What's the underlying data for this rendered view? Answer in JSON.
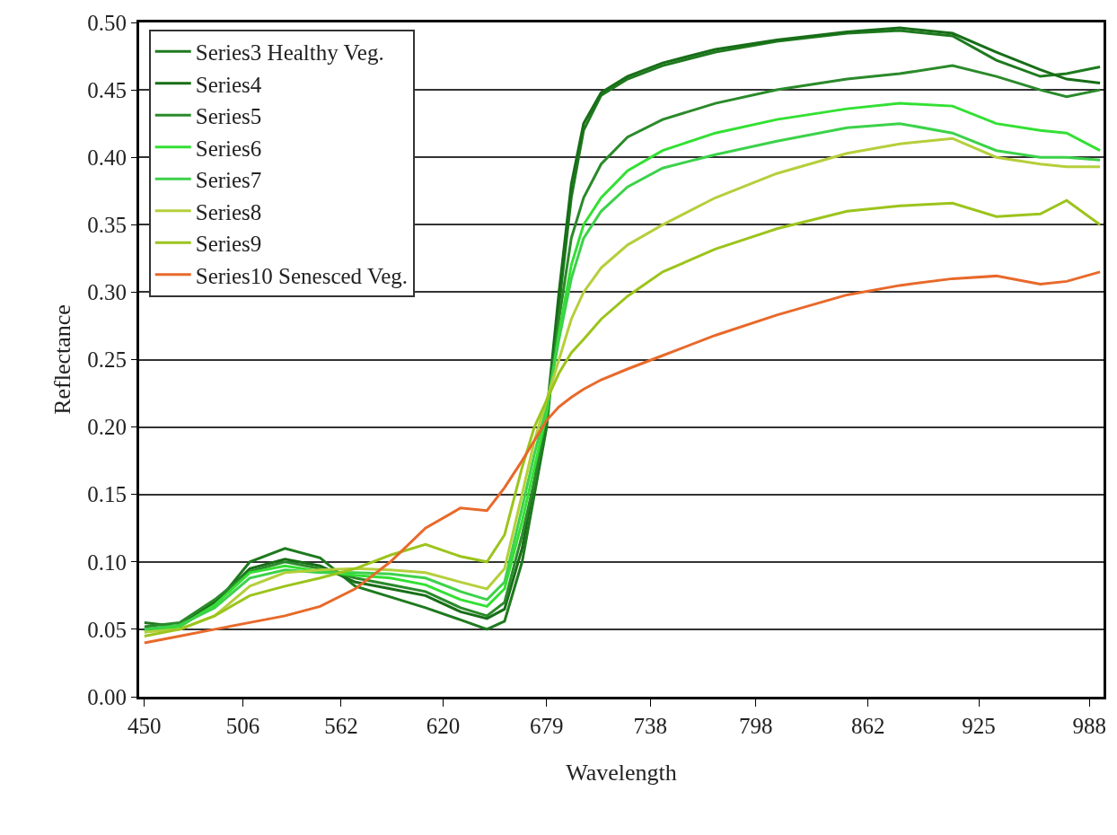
{
  "chart_data": {
    "type": "line",
    "xlabel": "Wavelength",
    "ylabel": "Reflectance",
    "x": [
      450,
      470,
      490,
      510,
      530,
      550,
      570,
      590,
      610,
      630,
      645,
      655,
      665,
      672,
      679,
      686,
      693,
      700,
      710,
      725,
      745,
      775,
      810,
      850,
      880,
      910,
      935,
      960,
      975,
      994
    ],
    "xlim": [
      447,
      996
    ],
    "xticks": [
      450,
      506,
      562,
      620,
      679,
      738,
      798,
      862,
      925,
      988
    ],
    "ylim": [
      0,
      0.5
    ],
    "yticks": [
      {
        "value": 0,
        "label": "0.00"
      },
      {
        "value": 0.05,
        "label": "0.05"
      },
      {
        "value": 0.1,
        "label": "0.10"
      },
      {
        "value": 0.15,
        "label": "0.15"
      },
      {
        "value": 0.2,
        "label": "0.20"
      },
      {
        "value": 0.25,
        "label": "0.25"
      },
      {
        "value": 0.3,
        "label": "0.30"
      },
      {
        "value": 0.35,
        "label": "0.35"
      },
      {
        "value": 0.4,
        "label": "0.40"
      },
      {
        "value": 0.45,
        "label": "0.45"
      },
      {
        "value": 0.5,
        "label": "0.50"
      }
    ],
    "grid": "y",
    "legend": "top left",
    "marker": "none",
    "line_style": "solid",
    "series": [
      {
        "name": "Series3 Healthy Veg.",
        "color": "#1e7a1e",
        "values": [
          0.055,
          0.052,
          0.068,
          0.1,
          0.11,
          0.103,
          0.082,
          0.074,
          0.066,
          0.057,
          0.05,
          0.056,
          0.1,
          0.15,
          0.2,
          0.29,
          0.37,
          0.42,
          0.446,
          0.458,
          0.468,
          0.478,
          0.486,
          0.492,
          0.494,
          0.49,
          0.472,
          0.46,
          0.462,
          0.467
        ]
      },
      {
        "name": "Series4",
        "color": "#176e17",
        "values": [
          0.05,
          0.053,
          0.07,
          0.095,
          0.102,
          0.097,
          0.085,
          0.08,
          0.075,
          0.063,
          0.058,
          0.065,
          0.11,
          0.16,
          0.21,
          0.3,
          0.38,
          0.425,
          0.448,
          0.46,
          0.47,
          0.48,
          0.487,
          0.493,
          0.496,
          0.492,
          0.478,
          0.465,
          0.458,
          0.455
        ]
      },
      {
        "name": "Series5",
        "color": "#2a8a2a",
        "values": [
          0.052,
          0.055,
          0.072,
          0.093,
          0.1,
          0.095,
          0.088,
          0.083,
          0.078,
          0.066,
          0.06,
          0.07,
          0.12,
          0.16,
          0.21,
          0.28,
          0.34,
          0.37,
          0.395,
          0.415,
          0.428,
          0.44,
          0.45,
          0.458,
          0.462,
          0.468,
          0.46,
          0.45,
          0.445,
          0.45
        ]
      },
      {
        "name": "Series6",
        "color": "#33e033",
        "values": [
          0.048,
          0.052,
          0.068,
          0.092,
          0.097,
          0.093,
          0.09,
          0.088,
          0.083,
          0.072,
          0.067,
          0.08,
          0.13,
          0.17,
          0.21,
          0.27,
          0.32,
          0.35,
          0.37,
          0.39,
          0.405,
          0.418,
          0.428,
          0.436,
          0.44,
          0.438,
          0.425,
          0.42,
          0.418,
          0.405
        ]
      },
      {
        "name": "Series7",
        "color": "#3cd24a",
        "values": [
          0.05,
          0.053,
          0.066,
          0.088,
          0.094,
          0.092,
          0.092,
          0.091,
          0.088,
          0.078,
          0.072,
          0.085,
          0.14,
          0.18,
          0.215,
          0.265,
          0.31,
          0.34,
          0.36,
          0.378,
          0.392,
          0.402,
          0.412,
          0.422,
          0.425,
          0.418,
          0.405,
          0.4,
          0.4,
          0.398
        ]
      },
      {
        "name": "Series8",
        "color": "#b5cf3c",
        "values": [
          0.048,
          0.05,
          0.06,
          0.082,
          0.092,
          0.094,
          0.095,
          0.094,
          0.092,
          0.085,
          0.08,
          0.095,
          0.15,
          0.19,
          0.22,
          0.25,
          0.28,
          0.3,
          0.318,
          0.335,
          0.35,
          0.37,
          0.388,
          0.403,
          0.41,
          0.414,
          0.4,
          0.395,
          0.393,
          0.393
        ]
      },
      {
        "name": "Series9",
        "color": "#9cc41c",
        "values": [
          0.045,
          0.05,
          0.06,
          0.075,
          0.082,
          0.088,
          0.095,
          0.105,
          0.113,
          0.104,
          0.1,
          0.12,
          0.17,
          0.2,
          0.22,
          0.24,
          0.255,
          0.265,
          0.28,
          0.297,
          0.315,
          0.332,
          0.347,
          0.36,
          0.364,
          0.366,
          0.356,
          0.358,
          0.368,
          0.35
        ]
      },
      {
        "name": "Series10 Senesced Veg.",
        "color": "#e8692a",
        "values": [
          0.04,
          0.045,
          0.05,
          0.055,
          0.06,
          0.067,
          0.08,
          0.1,
          0.125,
          0.14,
          0.138,
          0.155,
          0.175,
          0.19,
          0.205,
          0.215,
          0.222,
          0.228,
          0.235,
          0.243,
          0.253,
          0.268,
          0.283,
          0.298,
          0.305,
          0.31,
          0.312,
          0.306,
          0.308,
          0.315
        ]
      }
    ]
  }
}
